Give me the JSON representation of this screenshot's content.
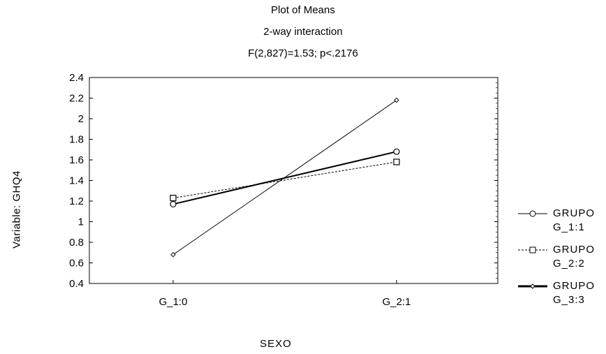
{
  "chart_data": {
    "type": "line",
    "title": "Plot of Means",
    "subtitle_1": "2-way interaction",
    "subtitle_2": "F(2,827)=1.53; p<.2176",
    "xlabel": "SEXO",
    "ylabel": "Variable: GHQ4",
    "categories": [
      "G_1:0",
      "G_2:1"
    ],
    "ylim": [
      0.4,
      2.4
    ],
    "yticks": [
      "0.4",
      "0.6",
      "0.8",
      "1",
      "1.2",
      "1.4",
      "1.6",
      "1.8",
      "2",
      "2.2",
      "2.4"
    ],
    "grid": false,
    "legend_position": "right",
    "series": [
      {
        "name_line1": "GRUPO",
        "name_line2": "G_1:1",
        "marker": "circle",
        "line": "solid",
        "values": [
          1.17,
          1.68
        ]
      },
      {
        "name_line1": "GRUPO",
        "name_line2": "G_2:2",
        "marker": "square",
        "line": "dashed",
        "values": [
          1.23,
          1.58
        ]
      },
      {
        "name_line1": "GRUPO",
        "name_line2": "G_3:3",
        "marker": "diamond",
        "line": "thin",
        "values": [
          0.68,
          2.18
        ]
      }
    ]
  }
}
